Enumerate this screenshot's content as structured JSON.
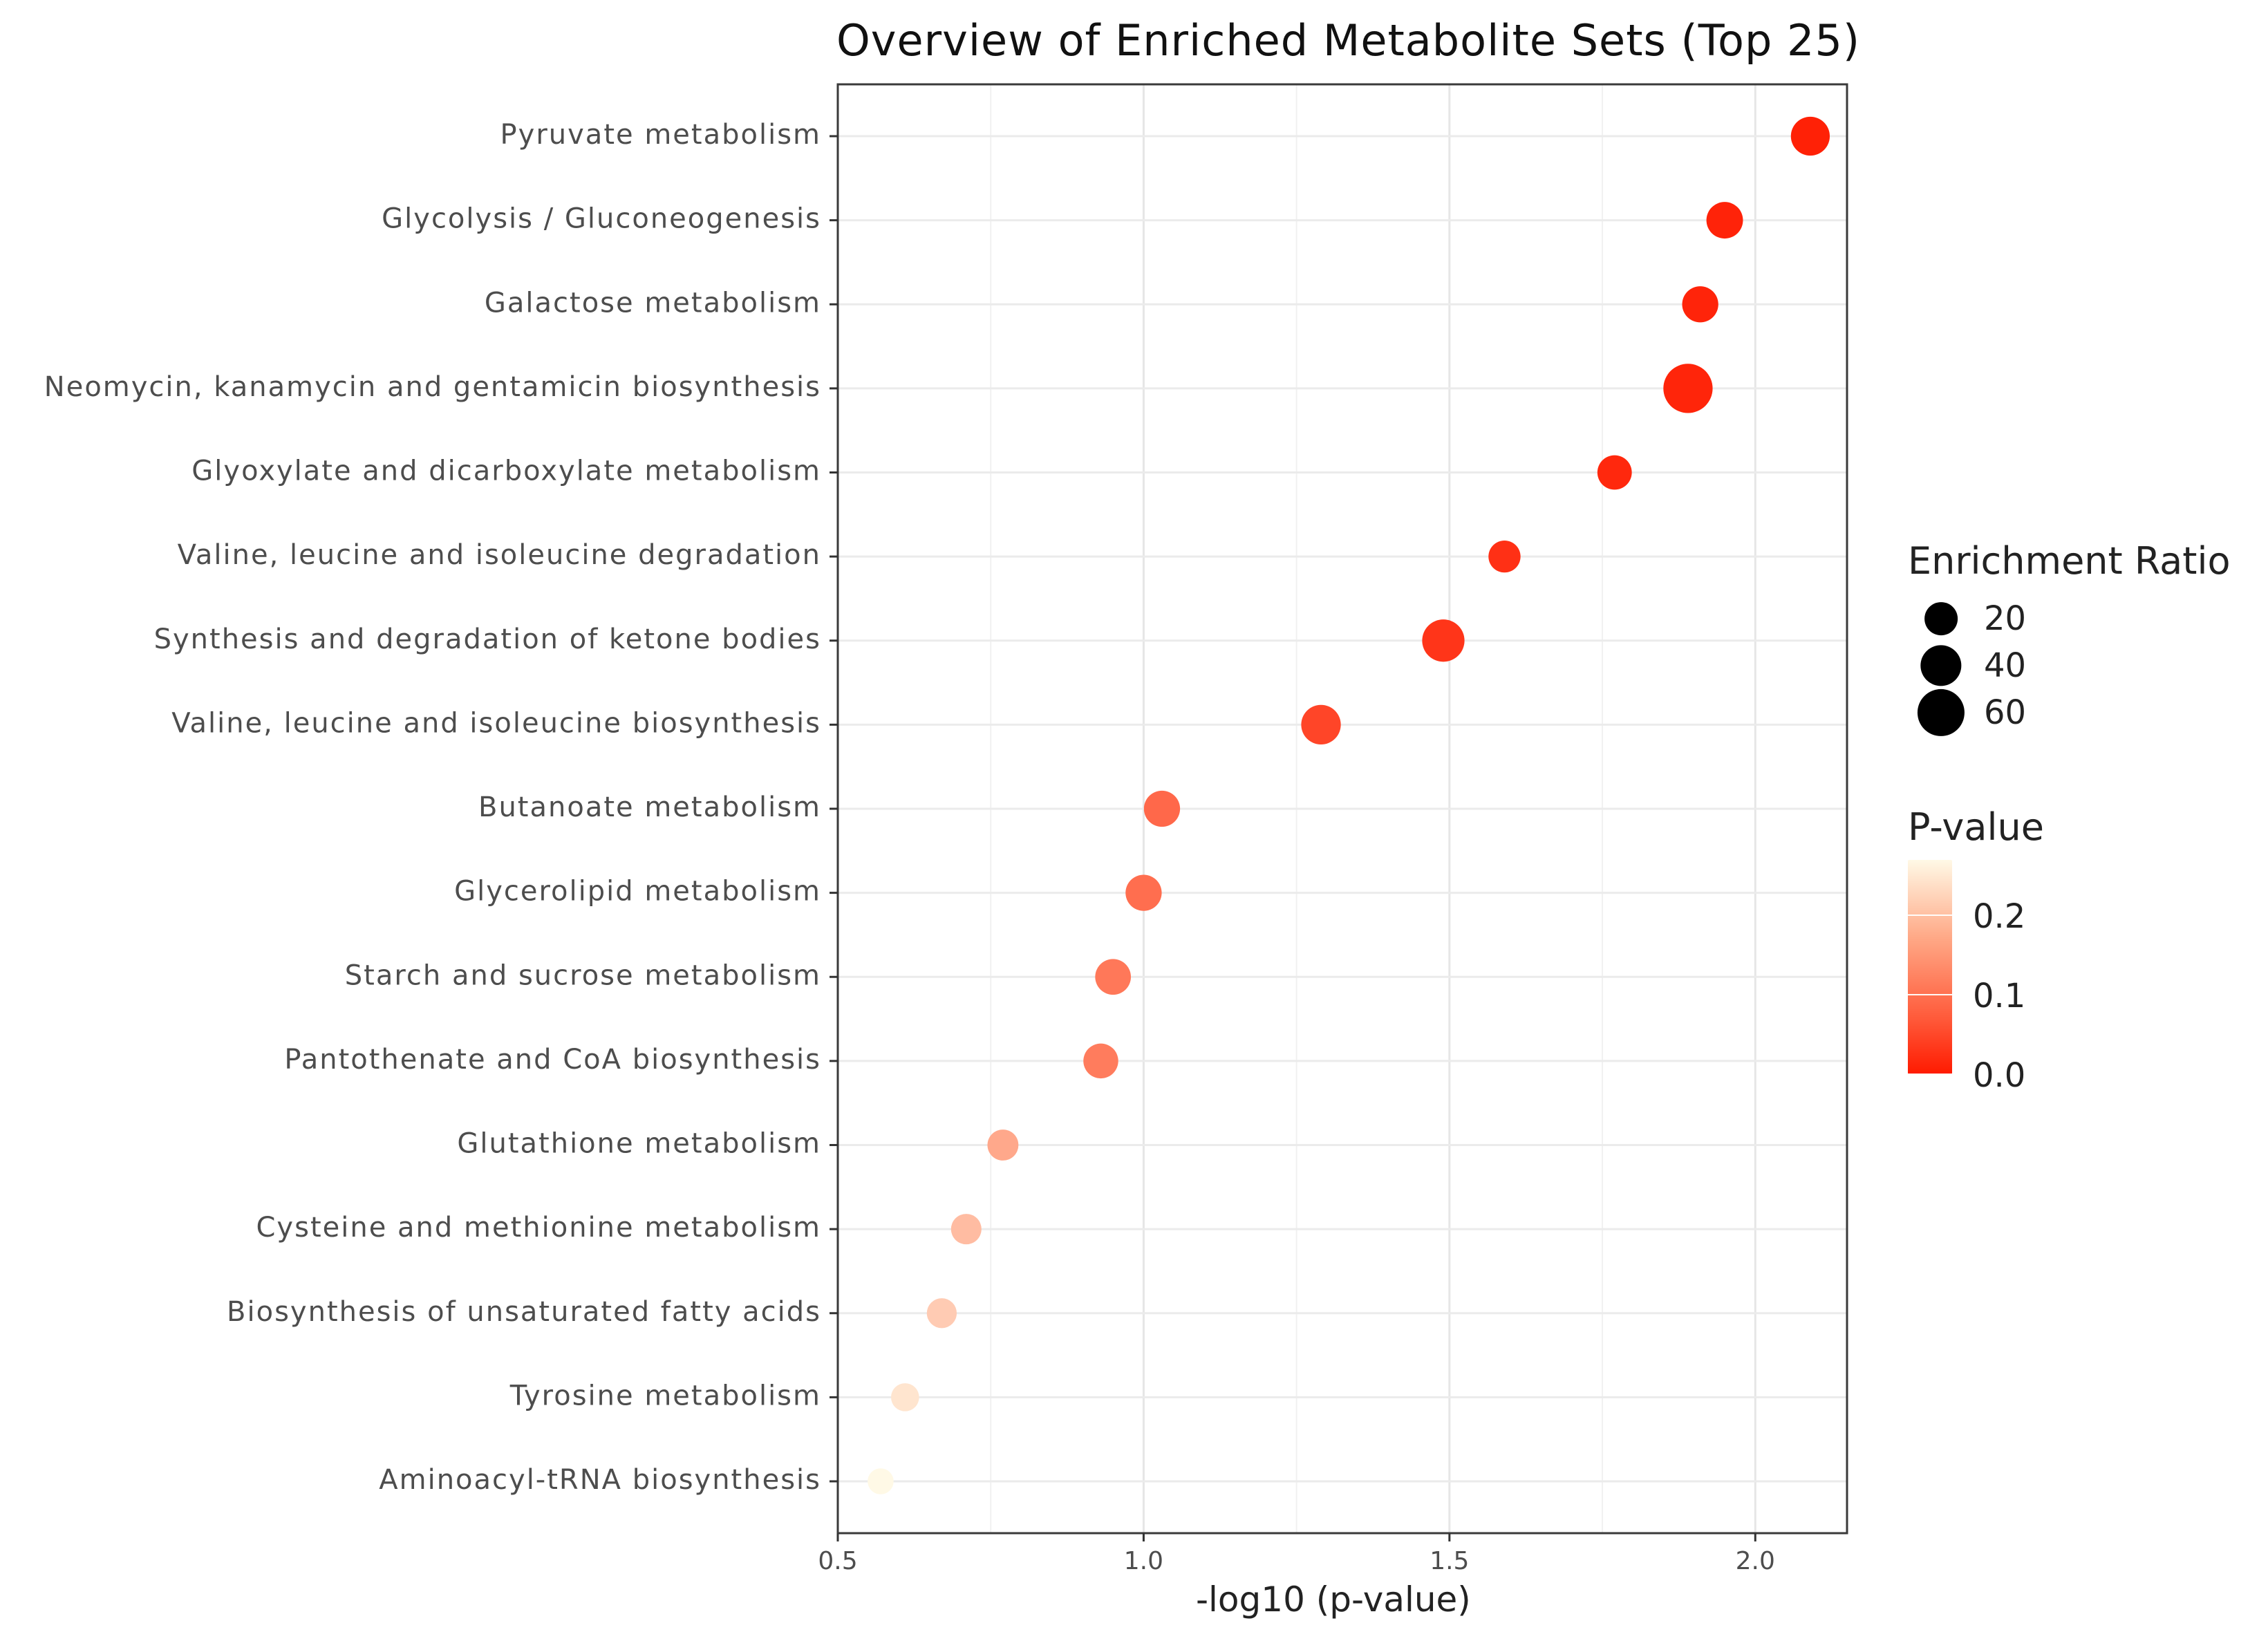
{
  "chart_data": {
    "type": "scatter",
    "title": "Overview of Enriched Metabolite Sets (Top 25)",
    "xlabel": "-log10 (p-value)",
    "ylabel": "",
    "xlim": [
      0.5,
      2.15
    ],
    "x_ticks": [
      0.5,
      1.0,
      1.5,
      2.0
    ],
    "x_tick_labels": [
      "0.5",
      "1.0",
      "1.5",
      "2.0"
    ],
    "categories": [
      "Pyruvate metabolism",
      "Glycolysis / Gluconeogenesis",
      "Galactose metabolism",
      "Neomycin, kanamycin and gentamicin biosynthesis",
      "Glyoxylate and dicarboxylate metabolism",
      "Valine, leucine and isoleucine degradation",
      "Synthesis and degradation of ketone bodies",
      "Valine, leucine and isoleucine biosynthesis",
      "Butanoate metabolism",
      "Glycerolipid metabolism",
      "Starch and sucrose metabolism",
      "Pantothenate and CoA biosynthesis",
      "Glutathione metabolism",
      "Cysteine and methionine metabolism",
      "Biosynthesis of unsaturated fatty acids",
      "Tyrosine metabolism",
      "Aminoacyl-tRNA biosynthesis"
    ],
    "x": [
      2.09,
      1.95,
      1.91,
      1.89,
      1.77,
      1.59,
      1.49,
      1.29,
      1.03,
      1.0,
      0.95,
      0.93,
      0.77,
      0.71,
      0.67,
      0.61,
      0.57
    ],
    "enrichment_ratio": [
      34,
      28,
      27,
      68,
      23,
      18,
      44,
      36,
      27,
      27,
      26,
      24,
      16,
      15,
      14,
      11,
      8
    ],
    "p_value": [
      0.008,
      0.011,
      0.012,
      0.013,
      0.017,
      0.026,
      0.032,
      0.051,
      0.093,
      0.1,
      0.112,
      0.117,
      0.17,
      0.195,
      0.214,
      0.245,
      0.27
    ],
    "legend_size": {
      "title": "Enrichment Ratio",
      "values": [
        20,
        40,
        60
      ],
      "labels": [
        "20",
        "40",
        "60"
      ]
    },
    "legend_color": {
      "title": "P-value",
      "range": [
        0.0,
        0.27
      ],
      "ticks": [
        0.2,
        0.1,
        0.0
      ],
      "tick_labels": [
        "0.2",
        "0.1",
        "0.0"
      ],
      "color_low": "#ff1a00",
      "color_mid": "#ff8b6b",
      "color_high": "#fff9e6"
    }
  }
}
